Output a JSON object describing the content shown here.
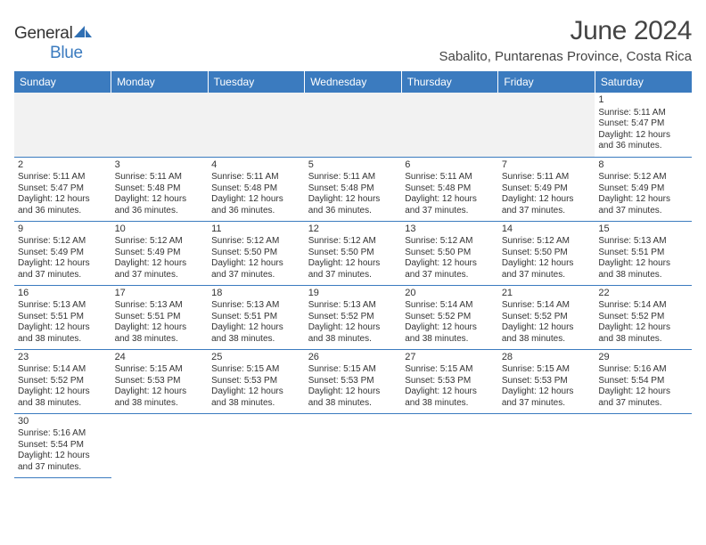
{
  "logo": {
    "brand_part1": "General",
    "brand_part2": "Blue",
    "sail_color": "#2f6fb3"
  },
  "header": {
    "month_title": "June 2024",
    "location": "Sabalito, Puntarenas Province, Costa Rica"
  },
  "colors": {
    "header_bg": "#3b7bbf",
    "header_fg": "#ffffff",
    "cell_border": "#3b7bbf",
    "empty_bg": "#f2f2f2",
    "text": "#333333"
  },
  "day_headers": [
    "Sunday",
    "Monday",
    "Tuesday",
    "Wednesday",
    "Thursday",
    "Friday",
    "Saturday"
  ],
  "weeks": [
    [
      null,
      null,
      null,
      null,
      null,
      null,
      {
        "n": "1",
        "sunrise": "Sunrise: 5:11 AM",
        "sunset": "Sunset: 5:47 PM",
        "daylight1": "Daylight: 12 hours",
        "daylight2": "and 36 minutes."
      }
    ],
    [
      {
        "n": "2",
        "sunrise": "Sunrise: 5:11 AM",
        "sunset": "Sunset: 5:47 PM",
        "daylight1": "Daylight: 12 hours",
        "daylight2": "and 36 minutes."
      },
      {
        "n": "3",
        "sunrise": "Sunrise: 5:11 AM",
        "sunset": "Sunset: 5:48 PM",
        "daylight1": "Daylight: 12 hours",
        "daylight2": "and 36 minutes."
      },
      {
        "n": "4",
        "sunrise": "Sunrise: 5:11 AM",
        "sunset": "Sunset: 5:48 PM",
        "daylight1": "Daylight: 12 hours",
        "daylight2": "and 36 minutes."
      },
      {
        "n": "5",
        "sunrise": "Sunrise: 5:11 AM",
        "sunset": "Sunset: 5:48 PM",
        "daylight1": "Daylight: 12 hours",
        "daylight2": "and 36 minutes."
      },
      {
        "n": "6",
        "sunrise": "Sunrise: 5:11 AM",
        "sunset": "Sunset: 5:48 PM",
        "daylight1": "Daylight: 12 hours",
        "daylight2": "and 37 minutes."
      },
      {
        "n": "7",
        "sunrise": "Sunrise: 5:11 AM",
        "sunset": "Sunset: 5:49 PM",
        "daylight1": "Daylight: 12 hours",
        "daylight2": "and 37 minutes."
      },
      {
        "n": "8",
        "sunrise": "Sunrise: 5:12 AM",
        "sunset": "Sunset: 5:49 PM",
        "daylight1": "Daylight: 12 hours",
        "daylight2": "and 37 minutes."
      }
    ],
    [
      {
        "n": "9",
        "sunrise": "Sunrise: 5:12 AM",
        "sunset": "Sunset: 5:49 PM",
        "daylight1": "Daylight: 12 hours",
        "daylight2": "and 37 minutes."
      },
      {
        "n": "10",
        "sunrise": "Sunrise: 5:12 AM",
        "sunset": "Sunset: 5:49 PM",
        "daylight1": "Daylight: 12 hours",
        "daylight2": "and 37 minutes."
      },
      {
        "n": "11",
        "sunrise": "Sunrise: 5:12 AM",
        "sunset": "Sunset: 5:50 PM",
        "daylight1": "Daylight: 12 hours",
        "daylight2": "and 37 minutes."
      },
      {
        "n": "12",
        "sunrise": "Sunrise: 5:12 AM",
        "sunset": "Sunset: 5:50 PM",
        "daylight1": "Daylight: 12 hours",
        "daylight2": "and 37 minutes."
      },
      {
        "n": "13",
        "sunrise": "Sunrise: 5:12 AM",
        "sunset": "Sunset: 5:50 PM",
        "daylight1": "Daylight: 12 hours",
        "daylight2": "and 37 minutes."
      },
      {
        "n": "14",
        "sunrise": "Sunrise: 5:12 AM",
        "sunset": "Sunset: 5:50 PM",
        "daylight1": "Daylight: 12 hours",
        "daylight2": "and 37 minutes."
      },
      {
        "n": "15",
        "sunrise": "Sunrise: 5:13 AM",
        "sunset": "Sunset: 5:51 PM",
        "daylight1": "Daylight: 12 hours",
        "daylight2": "and 38 minutes."
      }
    ],
    [
      {
        "n": "16",
        "sunrise": "Sunrise: 5:13 AM",
        "sunset": "Sunset: 5:51 PM",
        "daylight1": "Daylight: 12 hours",
        "daylight2": "and 38 minutes."
      },
      {
        "n": "17",
        "sunrise": "Sunrise: 5:13 AM",
        "sunset": "Sunset: 5:51 PM",
        "daylight1": "Daylight: 12 hours",
        "daylight2": "and 38 minutes."
      },
      {
        "n": "18",
        "sunrise": "Sunrise: 5:13 AM",
        "sunset": "Sunset: 5:51 PM",
        "daylight1": "Daylight: 12 hours",
        "daylight2": "and 38 minutes."
      },
      {
        "n": "19",
        "sunrise": "Sunrise: 5:13 AM",
        "sunset": "Sunset: 5:52 PM",
        "daylight1": "Daylight: 12 hours",
        "daylight2": "and 38 minutes."
      },
      {
        "n": "20",
        "sunrise": "Sunrise: 5:14 AM",
        "sunset": "Sunset: 5:52 PM",
        "daylight1": "Daylight: 12 hours",
        "daylight2": "and 38 minutes."
      },
      {
        "n": "21",
        "sunrise": "Sunrise: 5:14 AM",
        "sunset": "Sunset: 5:52 PM",
        "daylight1": "Daylight: 12 hours",
        "daylight2": "and 38 minutes."
      },
      {
        "n": "22",
        "sunrise": "Sunrise: 5:14 AM",
        "sunset": "Sunset: 5:52 PM",
        "daylight1": "Daylight: 12 hours",
        "daylight2": "and 38 minutes."
      }
    ],
    [
      {
        "n": "23",
        "sunrise": "Sunrise: 5:14 AM",
        "sunset": "Sunset: 5:52 PM",
        "daylight1": "Daylight: 12 hours",
        "daylight2": "and 38 minutes."
      },
      {
        "n": "24",
        "sunrise": "Sunrise: 5:15 AM",
        "sunset": "Sunset: 5:53 PM",
        "daylight1": "Daylight: 12 hours",
        "daylight2": "and 38 minutes."
      },
      {
        "n": "25",
        "sunrise": "Sunrise: 5:15 AM",
        "sunset": "Sunset: 5:53 PM",
        "daylight1": "Daylight: 12 hours",
        "daylight2": "and 38 minutes."
      },
      {
        "n": "26",
        "sunrise": "Sunrise: 5:15 AM",
        "sunset": "Sunset: 5:53 PM",
        "daylight1": "Daylight: 12 hours",
        "daylight2": "and 38 minutes."
      },
      {
        "n": "27",
        "sunrise": "Sunrise: 5:15 AM",
        "sunset": "Sunset: 5:53 PM",
        "daylight1": "Daylight: 12 hours",
        "daylight2": "and 38 minutes."
      },
      {
        "n": "28",
        "sunrise": "Sunrise: 5:15 AM",
        "sunset": "Sunset: 5:53 PM",
        "daylight1": "Daylight: 12 hours",
        "daylight2": "and 37 minutes."
      },
      {
        "n": "29",
        "sunrise": "Sunrise: 5:16 AM",
        "sunset": "Sunset: 5:54 PM",
        "daylight1": "Daylight: 12 hours",
        "daylight2": "and 37 minutes."
      }
    ],
    [
      {
        "n": "30",
        "sunrise": "Sunrise: 5:16 AM",
        "sunset": "Sunset: 5:54 PM",
        "daylight1": "Daylight: 12 hours",
        "daylight2": "and 37 minutes."
      },
      null,
      null,
      null,
      null,
      null,
      null
    ]
  ]
}
